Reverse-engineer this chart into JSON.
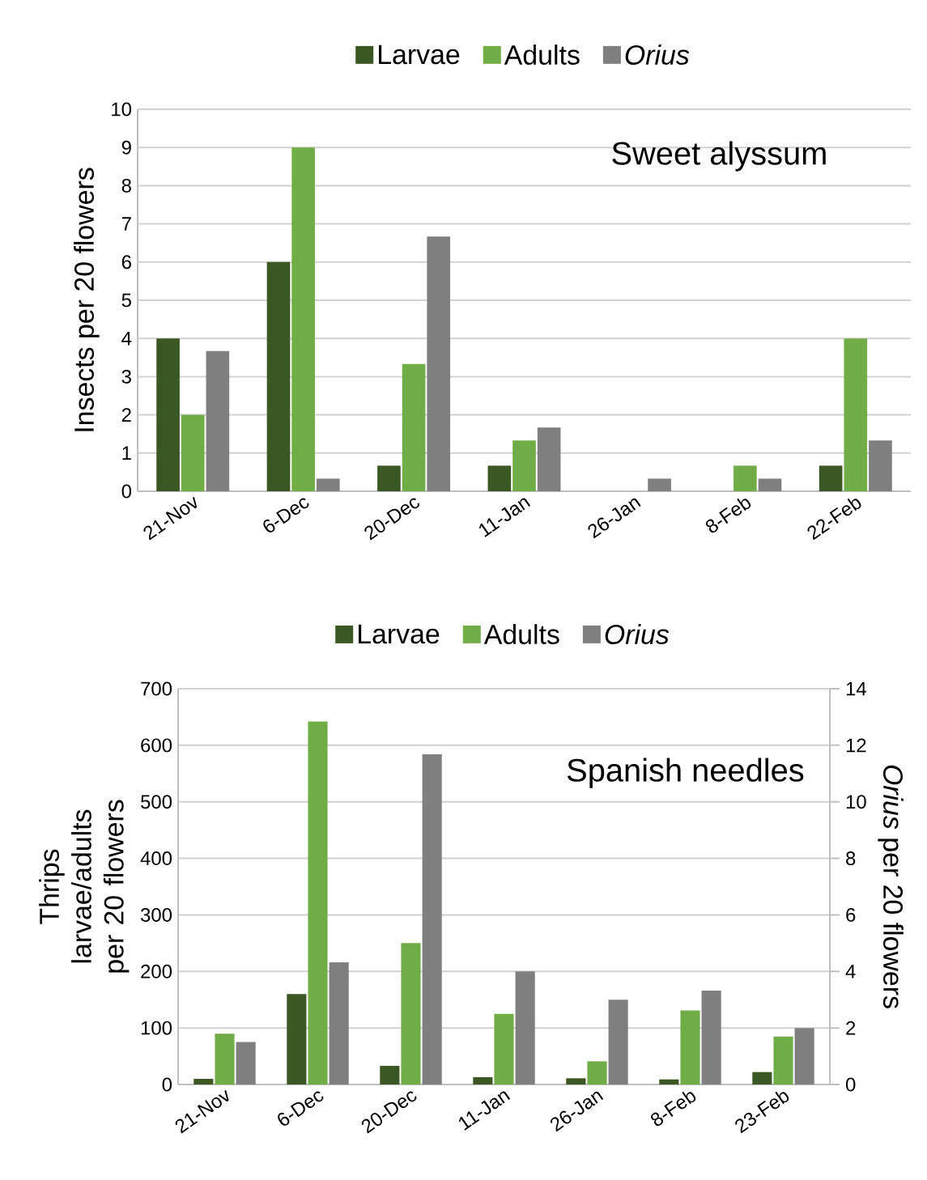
{
  "chart_data": [
    {
      "type": "bar",
      "title": "Sweet alyssum",
      "ylabel": "Insects per 20 flowers",
      "categories": [
        "21-Nov",
        "6-Dec",
        "20-Dec",
        "11-Jan",
        "26-Jan",
        "8-Feb",
        "22-Feb"
      ],
      "ylim": [
        0,
        10
      ],
      "yticks": [
        0,
        1,
        2,
        3,
        4,
        5,
        6,
        7,
        8,
        9,
        10
      ],
      "grid": "y",
      "legend": "top",
      "series": [
        {
          "name": "Larvae",
          "color": "#3b5723",
          "values": [
            4,
            6,
            0.67,
            0.67,
            0,
            0,
            0.67
          ]
        },
        {
          "name": "Adults",
          "color": "#70ad47",
          "values": [
            2,
            9,
            3.33,
            1.33,
            0,
            0.67,
            4
          ]
        },
        {
          "name": "*Orius*",
          "color": "#7f7f7f",
          "values": [
            3.67,
            0.33,
            6.67,
            1.67,
            0.33,
            0.33,
            1.33
          ]
        }
      ]
    },
    {
      "type": "bar",
      "title": "Spanish needles",
      "ylabel": "Thrips larvae/adults per 20 flowers",
      "y2label": "*Orius* per 20 flowers",
      "categories": [
        "21-Nov",
        "6-Dec",
        "20-Dec",
        "11-Jan",
        "26-Jan",
        "8-Feb",
        "23-Feb"
      ],
      "ylim": [
        0,
        700
      ],
      "yticks": [
        0,
        100,
        200,
        300,
        400,
        500,
        600,
        700
      ],
      "y2lim": [
        0,
        14
      ],
      "y2ticks": [
        0,
        2,
        4,
        6,
        8,
        10,
        12,
        14
      ],
      "grid": "y",
      "legend": "top",
      "series": [
        {
          "name": "Larvae",
          "color": "#3b5723",
          "values": [
            10,
            160,
            33,
            13,
            11,
            9,
            22
          ]
        },
        {
          "name": "Adults",
          "color": "#70ad47",
          "values": [
            90,
            642,
            250,
            125,
            41,
            131,
            85
          ]
        },
        {
          "name": "*Orius*",
          "color": "#7f7f7f",
          "axis": "y2",
          "values": [
            1.5,
            4.32,
            11.68,
            4,
            3,
            3.32,
            2
          ]
        }
      ]
    }
  ]
}
